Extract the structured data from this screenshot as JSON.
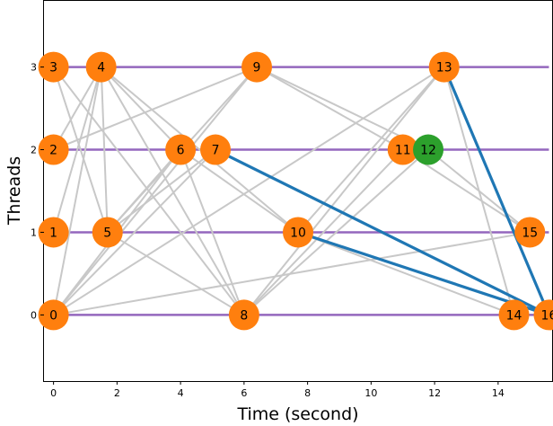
{
  "chart_data": {
    "type": "scatter",
    "xlabel": "Time (second)",
    "ylabel": "Threads",
    "xlim": [
      -0.3,
      15.7
    ],
    "ylim": [
      -0.8,
      3.8
    ],
    "xticks": [
      0,
      2,
      4,
      6,
      8,
      10,
      12,
      14
    ],
    "yticks": [
      0,
      1,
      2,
      3
    ],
    "colors": {
      "thread_line": "#9467bd",
      "edge": "#c8c8c8",
      "critical_edge": "#1f77b4",
      "node": "#ff7f0e",
      "highlight_node": "#2ca02c"
    },
    "threads": [
      0,
      1,
      2,
      3
    ],
    "nodes": [
      {
        "id": "0",
        "x": 0.0,
        "thread": 0,
        "color": "#ff7f0e"
      },
      {
        "id": "1",
        "x": 0.0,
        "thread": 1,
        "color": "#ff7f0e"
      },
      {
        "id": "2",
        "x": 0.0,
        "thread": 2,
        "color": "#ff7f0e"
      },
      {
        "id": "3",
        "x": 0.0,
        "thread": 3,
        "color": "#ff7f0e"
      },
      {
        "id": "4",
        "x": 1.5,
        "thread": 3,
        "color": "#ff7f0e"
      },
      {
        "id": "5",
        "x": 1.7,
        "thread": 1,
        "color": "#ff7f0e"
      },
      {
        "id": "6",
        "x": 4.0,
        "thread": 2,
        "color": "#ff7f0e"
      },
      {
        "id": "7",
        "x": 5.1,
        "thread": 2,
        "color": "#ff7f0e"
      },
      {
        "id": "8",
        "x": 6.0,
        "thread": 0,
        "color": "#ff7f0e"
      },
      {
        "id": "9",
        "x": 6.4,
        "thread": 3,
        "color": "#ff7f0e"
      },
      {
        "id": "10",
        "x": 7.7,
        "thread": 1,
        "color": "#ff7f0e"
      },
      {
        "id": "11",
        "x": 11.0,
        "thread": 2,
        "color": "#ff7f0e"
      },
      {
        "id": "12",
        "x": 11.8,
        "thread": 2,
        "color": "#2ca02c"
      },
      {
        "id": "13",
        "x": 12.3,
        "thread": 3,
        "color": "#ff7f0e"
      },
      {
        "id": "14",
        "x": 14.5,
        "thread": 0,
        "color": "#ff7f0e"
      },
      {
        "id": "15",
        "x": 15.0,
        "thread": 1,
        "color": "#ff7f0e"
      },
      {
        "id": "16",
        "x": 15.6,
        "thread": 0,
        "color": "#ff7f0e"
      }
    ],
    "edges": [
      [
        "0",
        "4"
      ],
      [
        "0",
        "6"
      ],
      [
        "0",
        "7"
      ],
      [
        "0",
        "9"
      ],
      [
        "0",
        "13"
      ],
      [
        "0",
        "15"
      ],
      [
        "1",
        "4"
      ],
      [
        "2",
        "4"
      ],
      [
        "3",
        "5"
      ],
      [
        "2",
        "9"
      ],
      [
        "4",
        "5"
      ],
      [
        "4",
        "6"
      ],
      [
        "4",
        "8"
      ],
      [
        "4",
        "10"
      ],
      [
        "5",
        "6"
      ],
      [
        "5",
        "7"
      ],
      [
        "5",
        "9"
      ],
      [
        "5",
        "8"
      ],
      [
        "6",
        "8"
      ],
      [
        "6",
        "10"
      ],
      [
        "8",
        "13"
      ],
      [
        "8",
        "11"
      ],
      [
        "8",
        "12"
      ],
      [
        "9",
        "11"
      ],
      [
        "9",
        "12"
      ],
      [
        "10",
        "13"
      ],
      [
        "10",
        "14"
      ],
      [
        "11",
        "15"
      ],
      [
        "12",
        "15"
      ],
      [
        "13",
        "14"
      ],
      [
        "3",
        "8"
      ]
    ],
    "critical_edges": [
      [
        "7",
        "16"
      ],
      [
        "10",
        "16"
      ],
      [
        "13",
        "16"
      ]
    ]
  }
}
